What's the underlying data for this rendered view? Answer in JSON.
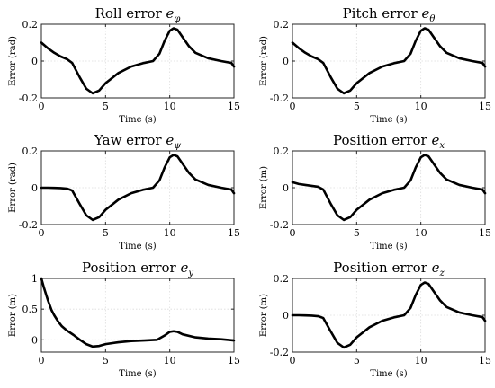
{
  "chart_data": [
    {
      "type": "line",
      "title": "Roll error",
      "title_symbol": "e",
      "title_subscript": "φ",
      "xlabel": "Time (s)",
      "ylabel": "Error (rad)",
      "xlim": [
        0,
        15
      ],
      "ylim": [
        -0.2,
        0.2
      ],
      "xticks": [
        0,
        5,
        10,
        15
      ],
      "yticks": [
        -0.2,
        0,
        0.2
      ],
      "grid": true,
      "series": [
        {
          "x": [
            0,
            0.5,
            1,
            1.5,
            2,
            2.4,
            3,
            3.5,
            4,
            4.5,
            5,
            6,
            7,
            8,
            8.7,
            9.2,
            9.6,
            10,
            10.3,
            10.6,
            11,
            11.5,
            12,
            13,
            14,
            14.8,
            15
          ],
          "y": [
            0.1,
            0.07,
            0.045,
            0.025,
            0.01,
            -0.01,
            -0.09,
            -0.15,
            -0.175,
            -0.16,
            -0.12,
            -0.065,
            -0.03,
            -0.01,
            0.0,
            0.04,
            0.11,
            0.165,
            0.178,
            0.17,
            0.13,
            0.08,
            0.045,
            0.015,
            0.0,
            -0.01,
            -0.03
          ]
        }
      ]
    },
    {
      "type": "line",
      "title": "Pitch error",
      "title_symbol": "e",
      "title_subscript": "θ",
      "xlabel": "Time (s)",
      "ylabel": "Error (rad)",
      "xlim": [
        0,
        15
      ],
      "ylim": [
        -0.2,
        0.2
      ],
      "xticks": [
        0,
        5,
        10,
        15
      ],
      "yticks": [
        -0.2,
        0,
        0.2
      ],
      "grid": true,
      "series": [
        {
          "x": [
            0,
            0.5,
            1,
            1.5,
            2,
            2.4,
            3,
            3.5,
            4,
            4.5,
            5,
            6,
            7,
            8,
            8.7,
            9.2,
            9.6,
            10,
            10.3,
            10.6,
            11,
            11.5,
            12,
            13,
            14,
            14.8,
            15
          ],
          "y": [
            0.1,
            0.07,
            0.045,
            0.025,
            0.01,
            -0.01,
            -0.09,
            -0.15,
            -0.175,
            -0.16,
            -0.12,
            -0.065,
            -0.03,
            -0.01,
            0.0,
            0.04,
            0.11,
            0.165,
            0.178,
            0.17,
            0.13,
            0.08,
            0.045,
            0.015,
            0.0,
            -0.01,
            -0.03
          ]
        }
      ]
    },
    {
      "type": "line",
      "title": "Yaw error",
      "title_symbol": "e",
      "title_subscript": "ψ",
      "xlabel": "Time (s)",
      "ylabel": "Error (rad)",
      "xlim": [
        0,
        15
      ],
      "ylim": [
        -0.2,
        0.2
      ],
      "xticks": [
        0,
        5,
        10,
        15
      ],
      "yticks": [
        -0.2,
        0,
        0.2
      ],
      "grid": true,
      "series": [
        {
          "x": [
            0,
            0.5,
            1,
            1.5,
            2,
            2.4,
            3,
            3.5,
            4,
            4.5,
            5,
            6,
            7,
            8,
            8.7,
            9.2,
            9.6,
            10,
            10.3,
            10.6,
            11,
            11.5,
            12,
            13,
            14,
            14.8,
            15
          ],
          "y": [
            0.0,
            0.0,
            -0.001,
            -0.002,
            -0.005,
            -0.015,
            -0.09,
            -0.15,
            -0.175,
            -0.16,
            -0.12,
            -0.065,
            -0.03,
            -0.01,
            0.0,
            0.04,
            0.11,
            0.165,
            0.178,
            0.17,
            0.13,
            0.08,
            0.045,
            0.015,
            0.0,
            -0.01,
            -0.03
          ]
        }
      ]
    },
    {
      "type": "line",
      "title": "Position error",
      "title_symbol": "e",
      "title_subscript": "x",
      "xlabel": "Time (s)",
      "ylabel": "Error (m)",
      "xlim": [
        0,
        15
      ],
      "ylim": [
        -0.2,
        0.2
      ],
      "xticks": [
        0,
        5,
        10,
        15
      ],
      "yticks": [
        -0.2,
        0,
        0.2
      ],
      "grid": true,
      "series": [
        {
          "x": [
            0,
            0.5,
            1,
            1.5,
            2,
            2.4,
            3,
            3.5,
            4,
            4.5,
            5,
            6,
            7,
            8,
            8.7,
            9.2,
            9.6,
            10,
            10.3,
            10.6,
            11,
            11.5,
            12,
            13,
            14,
            14.8,
            15
          ],
          "y": [
            0.03,
            0.02,
            0.015,
            0.01,
            0.005,
            -0.01,
            -0.09,
            -0.15,
            -0.175,
            -0.16,
            -0.12,
            -0.065,
            -0.03,
            -0.01,
            0.0,
            0.04,
            0.11,
            0.165,
            0.178,
            0.17,
            0.13,
            0.08,
            0.045,
            0.015,
            0.0,
            -0.01,
            -0.03
          ]
        }
      ]
    },
    {
      "type": "line",
      "title": "Position error",
      "title_symbol": "e",
      "title_subscript": "y",
      "xlabel": "Time (s)",
      "ylabel": "Error (m)",
      "xlim": [
        0,
        15
      ],
      "ylim": [
        -0.2,
        1
      ],
      "xticks": [
        0,
        5,
        10,
        15
      ],
      "yticks": [
        0,
        0.5,
        1
      ],
      "grid": true,
      "series": [
        {
          "x": [
            0,
            0.2,
            0.5,
            0.8,
            1,
            1.3,
            1.6,
            2,
            2.5,
            3,
            3.5,
            4,
            4.5,
            5,
            6,
            7,
            8,
            9,
            9.6,
            10,
            10.3,
            10.6,
            11,
            12,
            13,
            14,
            15
          ],
          "y": [
            1.0,
            0.85,
            0.65,
            0.48,
            0.4,
            0.3,
            0.22,
            0.15,
            0.08,
            0.0,
            -0.07,
            -0.11,
            -0.1,
            -0.07,
            -0.04,
            -0.02,
            -0.01,
            0.0,
            0.07,
            0.13,
            0.14,
            0.13,
            0.09,
            0.04,
            0.02,
            0.01,
            -0.01
          ]
        }
      ]
    },
    {
      "type": "line",
      "title": "Position error",
      "title_symbol": "e",
      "title_subscript": "z",
      "xlabel": "Time (s)",
      "ylabel": "Error (m)",
      "xlim": [
        0,
        15
      ],
      "ylim": [
        -0.2,
        0.2
      ],
      "xticks": [
        0,
        5,
        10,
        15
      ],
      "yticks": [
        -0.2,
        0,
        0.2
      ],
      "grid": true,
      "series": [
        {
          "x": [
            0,
            0.5,
            1,
            1.5,
            2,
            2.4,
            3,
            3.5,
            4,
            4.5,
            5,
            6,
            7,
            8,
            8.7,
            9.2,
            9.6,
            10,
            10.3,
            10.6,
            11,
            11.5,
            12,
            13,
            14,
            14.8,
            15
          ],
          "y": [
            0.0,
            0.0,
            -0.001,
            -0.002,
            -0.005,
            -0.015,
            -0.09,
            -0.15,
            -0.175,
            -0.16,
            -0.12,
            -0.065,
            -0.03,
            -0.01,
            0.0,
            0.04,
            0.11,
            0.165,
            0.178,
            0.17,
            0.13,
            0.08,
            0.045,
            0.015,
            0.0,
            -0.01,
            -0.03
          ]
        }
      ]
    }
  ]
}
